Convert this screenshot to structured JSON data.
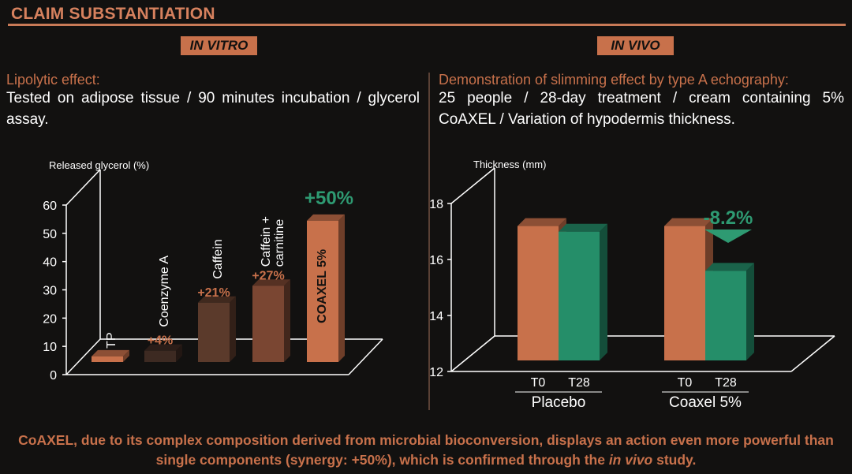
{
  "header": {
    "title": "CLAIM SUBSTANTIATION"
  },
  "in_vitro": {
    "badge": "IN VITRO",
    "lead": "Lipolytic effect:",
    "description": "Tested on adipose tissue / 90 minutes incubation / glycerol assay."
  },
  "in_vivo": {
    "badge": "IN VIVO",
    "lead": "Demonstration of slimming effect by type A echography:",
    "description": "25 people / 28-day treatment / cream containing 5% CoAXEL / Variation of hypodermis thickness."
  },
  "footer": {
    "text_before": "CoAXEL, due to its complex composition derived from microbial bioconversion, displays an action even more powerful than single components (synergy: +50%), which is confirmed through the ",
    "text_italic": "in vivo",
    "text_after": " study."
  },
  "chart_data": [
    {
      "type": "bar",
      "ylabel": "Released glycerol (%)",
      "ylim": [
        0,
        60
      ],
      "yticks": [
        "0",
        "10",
        "20",
        "30",
        "40",
        "50",
        "60"
      ],
      "categories": [
        "TP",
        "Coenzyme A",
        "Caffein",
        "Caffein + carnitine",
        "COAXEL 5%"
      ],
      "values": [
        2,
        4,
        21,
        27,
        50
      ],
      "data_labels": [
        "",
        "+4%",
        "+21%",
        "+27%",
        "+50%"
      ],
      "colors": [
        "#c8714b",
        "#3d2a22",
        "#5b3a2b",
        "#7a4632",
        "#c8714b"
      ],
      "label_colors": [
        "",
        "#c8714b",
        "#c8714b",
        "#c8714b",
        "#2e9a72"
      ]
    },
    {
      "type": "bar",
      "ylabel": "Thickness (mm)",
      "ylim": [
        12,
        18
      ],
      "yticks": [
        "12",
        "14",
        "16",
        "18"
      ],
      "groups": [
        "Placebo",
        "Coaxel 5%"
      ],
      "series": [
        {
          "name": "T0",
          "values": [
            16.8,
            16.8
          ],
          "color": "#c8714b"
        },
        {
          "name": "T28",
          "values": [
            16.6,
            15.2
          ],
          "color": "#258e69"
        }
      ],
      "annotation": "-8.2%",
      "annotation_color": "#2e9a72"
    }
  ]
}
